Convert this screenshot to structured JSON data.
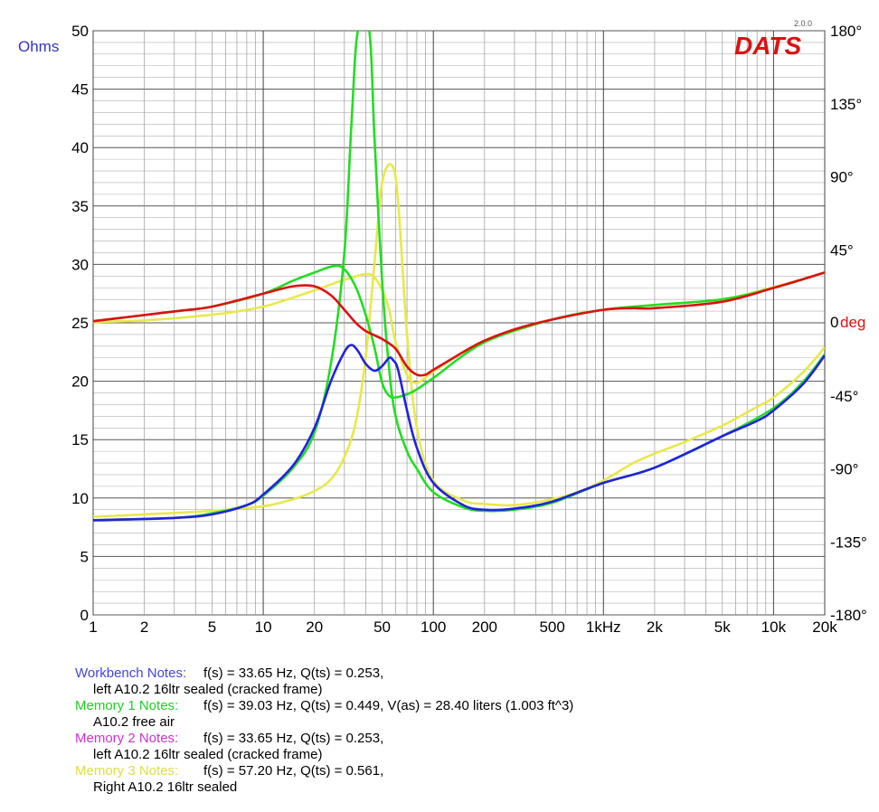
{
  "chart_data": {
    "type": "line",
    "x_scale": "log",
    "xlim": [
      1,
      20000
    ],
    "ylim_left": [
      0,
      50
    ],
    "ylim_right": [
      -180,
      180
    ],
    "grid": true,
    "yunit_left": "Ohms",
    "yunit_right_value": "0",
    "yunit_right_unit": "deg",
    "x_tick_labels": [
      {
        "x": 1,
        "label": "1"
      },
      {
        "x": 2,
        "label": "2"
      },
      {
        "x": 5,
        "label": "5"
      },
      {
        "x": 10,
        "label": "10"
      },
      {
        "x": 20,
        "label": "20"
      },
      {
        "x": 50,
        "label": "50"
      },
      {
        "x": 100,
        "label": "100"
      },
      {
        "x": 200,
        "label": "200"
      },
      {
        "x": 500,
        "label": "500"
      },
      {
        "x": 1000,
        "label": "1kHz"
      },
      {
        "x": 2000,
        "label": "2k"
      },
      {
        "x": 5000,
        "label": "5k"
      },
      {
        "x": 10000,
        "label": "10k"
      },
      {
        "x": 20000,
        "label": "20k"
      }
    ],
    "y_left_ticks": [
      0,
      5,
      10,
      15,
      20,
      25,
      30,
      35,
      40,
      45,
      50
    ],
    "y_right_ticks": [
      {
        "value": 180,
        "label": "180°"
      },
      {
        "value": 135,
        "label": "135°"
      },
      {
        "value": 90,
        "label": "90°"
      },
      {
        "value": 45,
        "label": "45°"
      },
      {
        "value": -45,
        "label": "-45°"
      },
      {
        "value": -90,
        "label": "-90°"
      },
      {
        "value": -135,
        "label": "-135°"
      },
      {
        "value": -180,
        "label": "-180°"
      }
    ],
    "series": [
      {
        "color": "#e8e84a",
        "axis": "left",
        "kind": "impedance",
        "points": [
          [
            1,
            8.4
          ],
          [
            2,
            8.6
          ],
          [
            5,
            8.9
          ],
          [
            10,
            9.3
          ],
          [
            15,
            9.9
          ],
          [
            20,
            10.6
          ],
          [
            25,
            11.6
          ],
          [
            30,
            13.5
          ],
          [
            35,
            16.5
          ],
          [
            40,
            22.0
          ],
          [
            45,
            30.0
          ],
          [
            50,
            37.0
          ],
          [
            57,
            38.5
          ],
          [
            62,
            35.5
          ],
          [
            70,
            24.0
          ],
          [
            80,
            16.0
          ],
          [
            100,
            11.5
          ],
          [
            150,
            9.8
          ],
          [
            200,
            9.5
          ],
          [
            300,
            9.4
          ],
          [
            500,
            9.9
          ],
          [
            700,
            10.5
          ],
          [
            1000,
            11.5
          ],
          [
            1500,
            13.0
          ],
          [
            2000,
            13.8
          ],
          [
            3000,
            14.8
          ],
          [
            5000,
            16.2
          ],
          [
            8000,
            17.8
          ],
          [
            10000,
            18.6
          ],
          [
            15000,
            20.8
          ],
          [
            20000,
            22.9
          ]
        ]
      },
      {
        "color": "#e8e84a",
        "axis": "right",
        "kind": "phase",
        "points": [
          [
            1,
            0.5
          ],
          [
            2,
            1.5
          ],
          [
            5,
            5.0
          ],
          [
            10,
            10.0
          ],
          [
            20,
            20.0
          ],
          [
            30,
            26.5
          ],
          [
            40,
            30.0
          ],
          [
            45,
            28.0
          ],
          [
            50,
            20.0
          ],
          [
            55,
            8.0
          ],
          [
            60,
            -12.0
          ],
          [
            70,
            -32.0
          ],
          [
            80,
            -37.0
          ],
          [
            100,
            -30.0
          ],
          [
            150,
            -18.0
          ],
          [
            200,
            -11.0
          ],
          [
            300,
            -5.0
          ],
          [
            500,
            2.0
          ],
          [
            1000,
            8.0
          ],
          [
            2000,
            11.0
          ],
          [
            5000,
            14.5
          ],
          [
            10000,
            22.0
          ],
          [
            15000,
            27.0
          ],
          [
            20000,
            31.0
          ]
        ]
      },
      {
        "color": "#22dd22",
        "axis": "left",
        "kind": "impedance",
        "points": [
          [
            1,
            8.1
          ],
          [
            3,
            8.3
          ],
          [
            5,
            8.7
          ],
          [
            8,
            9.4
          ],
          [
            10,
            10.2
          ],
          [
            15,
            12.6
          ],
          [
            20,
            15.6
          ],
          [
            25,
            21.5
          ],
          [
            30,
            31.0
          ],
          [
            33,
            42.0
          ],
          [
            36,
            50.0
          ],
          [
            42,
            50.0
          ],
          [
            45,
            41.0
          ],
          [
            50,
            28.5
          ],
          [
            55,
            21.0
          ],
          [
            60,
            17.0
          ],
          [
            70,
            14.0
          ],
          [
            80,
            12.5
          ],
          [
            100,
            10.5
          ],
          [
            150,
            9.2
          ],
          [
            200,
            8.9
          ],
          [
            300,
            9.0
          ],
          [
            500,
            9.6
          ],
          [
            1000,
            11.3
          ],
          [
            2000,
            12.6
          ],
          [
            5000,
            15.3
          ],
          [
            10000,
            17.7
          ],
          [
            15000,
            20.0
          ],
          [
            20000,
            22.3
          ]
        ]
      },
      {
        "color": "#22dd22",
        "axis": "right",
        "kind": "phase",
        "points": [
          [
            1,
            1
          ],
          [
            3,
            7
          ],
          [
            5,
            10
          ],
          [
            10,
            18
          ],
          [
            15,
            26
          ],
          [
            20,
            31
          ],
          [
            26,
            35
          ],
          [
            30,
            33
          ],
          [
            35,
            22
          ],
          [
            40,
            5
          ],
          [
            45,
            -15
          ],
          [
            50,
            -37
          ],
          [
            55,
            -45
          ],
          [
            60,
            -46
          ],
          [
            70,
            -44
          ],
          [
            80,
            -41
          ],
          [
            100,
            -34
          ],
          [
            200,
            -12
          ],
          [
            500,
            2
          ],
          [
            1000,
            8
          ],
          [
            2000,
            11
          ],
          [
            5000,
            14.5
          ],
          [
            10000,
            21.5
          ],
          [
            20000,
            31
          ]
        ]
      },
      {
        "color": "#2222dd",
        "axis": "left",
        "kind": "impedance",
        "points": [
          [
            1,
            8.1
          ],
          [
            3,
            8.3
          ],
          [
            5,
            8.6
          ],
          [
            8,
            9.4
          ],
          [
            10,
            10.3
          ],
          [
            15,
            12.8
          ],
          [
            20,
            16.0
          ],
          [
            25,
            20.0
          ],
          [
            30,
            22.5
          ],
          [
            33,
            23.1
          ],
          [
            36,
            22.6
          ],
          [
            40,
            21.5
          ],
          [
            45,
            20.9
          ],
          [
            50,
            21.3
          ],
          [
            55,
            22.0
          ],
          [
            58,
            21.8
          ],
          [
            62,
            21.0
          ],
          [
            70,
            17.5
          ],
          [
            80,
            14.3
          ],
          [
            100,
            11.3
          ],
          [
            150,
            9.4
          ],
          [
            200,
            9.0
          ],
          [
            300,
            9.1
          ],
          [
            500,
            9.7
          ],
          [
            1000,
            11.3
          ],
          [
            2000,
            12.6
          ],
          [
            5000,
            15.3
          ],
          [
            8000,
            16.6
          ],
          [
            10000,
            17.5
          ],
          [
            15000,
            19.8
          ],
          [
            20000,
            22.2
          ]
        ]
      },
      {
        "color": "#dd1111",
        "axis": "right",
        "kind": "phase",
        "points": [
          [
            1,
            1
          ],
          [
            3,
            7
          ],
          [
            5,
            10
          ],
          [
            10,
            18
          ],
          [
            15,
            22.5
          ],
          [
            20,
            22.5
          ],
          [
            25,
            17
          ],
          [
            30,
            8
          ],
          [
            35,
            0
          ],
          [
            40,
            -5
          ],
          [
            50,
            -10
          ],
          [
            60,
            -16
          ],
          [
            70,
            -27
          ],
          [
            80,
            -32
          ],
          [
            90,
            -32
          ],
          [
            100,
            -29
          ],
          [
            150,
            -18
          ],
          [
            200,
            -11
          ],
          [
            300,
            -4
          ],
          [
            500,
            2
          ],
          [
            1000,
            8
          ],
          [
            1500,
            9
          ],
          [
            2000,
            9
          ],
          [
            5000,
            13
          ],
          [
            10000,
            21.5
          ],
          [
            20000,
            31
          ]
        ]
      }
    ]
  },
  "logo": {
    "text": "DATS",
    "version": "2.0.0",
    "color": "#dd1111"
  },
  "notes": [
    {
      "label": "Workbench Notes:",
      "color": "#4444dd",
      "value": "f(s) = 33.65 Hz, Q(ts) = 0.253,",
      "sub": "left A10.2 16ltr sealed (cracked frame)"
    },
    {
      "label": "Memory 1 Notes:",
      "color": "#22cc22",
      "value": "f(s) = 39.03 Hz, Q(ts) = 0.449, V(as) = 28.40 liters  (1.003 ft^3)",
      "sub": "A10.2 free air"
    },
    {
      "label": "Memory 2 Notes:",
      "color": "#cc33cc",
      "value": "f(s) = 33.65 Hz, Q(ts) = 0.253,",
      "sub": "left A10.2 16ltr sealed (cracked frame)"
    },
    {
      "label": "Memory 3 Notes:",
      "color": "#dddd44",
      "value": "f(s) = 57.20 Hz, Q(ts) = 0.561,",
      "sub": "Right A10.2 16ltr sealed"
    }
  ]
}
